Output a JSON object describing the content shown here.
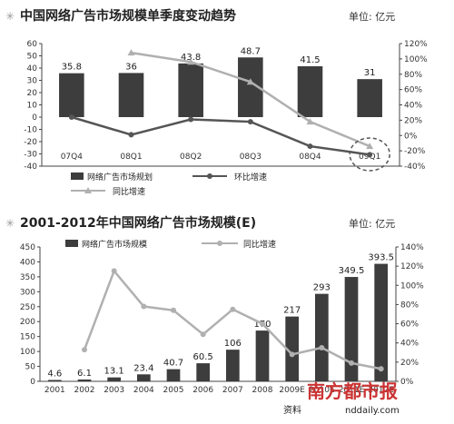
{
  "chart_data": [
    {
      "type": "bar",
      "title": "中国网络广告市场规模单季度变动趋势",
      "unit_label": "单位: 亿元",
      "categories": [
        "07Q4",
        "08Q1",
        "08Q2",
        "08Q3",
        "08Q4",
        "09Q1"
      ],
      "series": [
        {
          "name": "网络广告市场规划",
          "type": "bar",
          "axis": "left",
          "values": [
            35.8,
            36,
            43.8,
            48.7,
            41.5,
            31
          ]
        },
        {
          "name": "环比增速",
          "type": "line",
          "axis": "right",
          "values": [
            24,
            1,
            21,
            18,
            -14,
            -25
          ]
        },
        {
          "name": "同比增速",
          "type": "line",
          "axis": "right",
          "values": [
            null,
            108,
            96,
            70,
            18,
            -14
          ]
        }
      ],
      "y_left": {
        "min": -40,
        "max": 60,
        "ticks": [
          -40,
          -30,
          -20,
          -10,
          0,
          10,
          20,
          30,
          40,
          50,
          60
        ]
      },
      "y_right": {
        "min": -40,
        "max": 120,
        "ticks": [
          "-40%",
          "-20%",
          "0%",
          "20%",
          "40%",
          "60%",
          "80%",
          "100%",
          "120%"
        ]
      },
      "legend_position": "bottom",
      "grid": false
    },
    {
      "type": "bar",
      "title": "2001-2012年中国网络广告市场规模(E)",
      "unit_label": "单位: 亿元",
      "categories": [
        "2001",
        "2002",
        "2003",
        "2004",
        "2005",
        "2006",
        "2007",
        "2008",
        "2009E",
        "2010E",
        "2011E",
        "2012E"
      ],
      "series": [
        {
          "name": "网络广告市场规模",
          "type": "bar",
          "axis": "left",
          "values": [
            4.6,
            6.1,
            13.1,
            23.4,
            40.7,
            60.5,
            106,
            170,
            217,
            293,
            349.5,
            393.5
          ]
        },
        {
          "name": "同比增速",
          "type": "line",
          "axis": "right",
          "values": [
            null,
            33,
            115,
            78,
            74,
            49,
            75,
            60,
            28,
            35,
            19,
            13
          ]
        }
      ],
      "y_left": {
        "min": 0,
        "max": 450,
        "ticks": [
          0,
          50,
          100,
          150,
          200,
          250,
          300,
          350,
          400,
          450
        ]
      },
      "y_right": {
        "min": 0,
        "max": 140,
        "ticks": [
          "0%",
          "20%",
          "40%",
          "60%",
          "80%",
          "100%",
          "120%",
          "140%"
        ]
      },
      "legend_position": "top",
      "grid": false
    }
  ],
  "colors": {
    "bar": "#3d3d3d",
    "line_mom": "#555555",
    "line_yoy": "#b0b0b0",
    "watermark": "#cc3333"
  },
  "source_text": "资料",
  "watermark_text": "南方都市报",
  "watermark_url": "nddaily.com"
}
